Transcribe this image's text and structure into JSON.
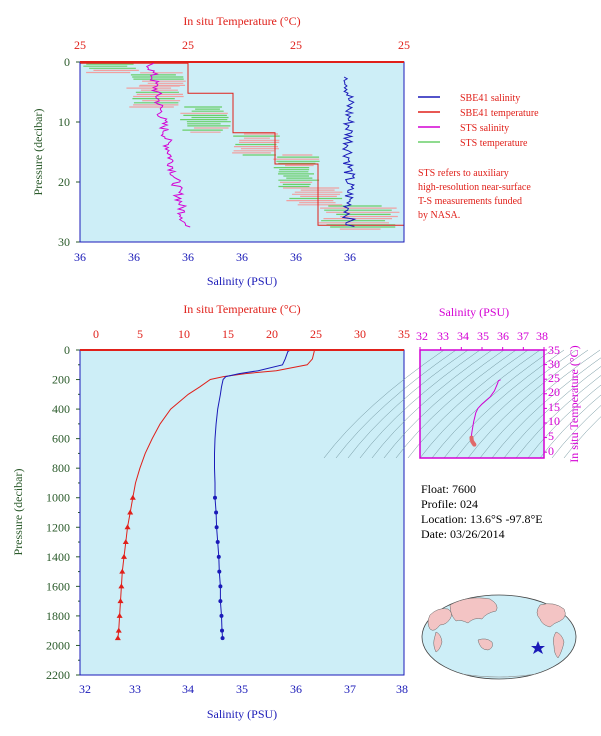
{
  "colors": {
    "temp": "#e0201a",
    "sal": "#1a1ab8",
    "sts_sal": "#d400d4",
    "sts_temp": "#6acf6a",
    "pressure": "#2a5a2a",
    "plot_bg": "#cdeef7",
    "info": "#000000"
  },
  "top_panel": {
    "top_axis_label": "In situ Temperature (°C)",
    "top_ticks": [
      "25",
      "25",
      "25",
      "25"
    ],
    "bottom_axis_label": "Salinity (PSU)",
    "bottom_ticks": [
      "36",
      "36",
      "36",
      "36",
      "36",
      "36"
    ],
    "left_axis_label": "Pressure (decibar)",
    "left_ticks": [
      "0",
      "10",
      "20",
      "30"
    ],
    "legend": [
      {
        "label": "SBE41 salinity",
        "color": "#1a1ab8"
      },
      {
        "label": "SBE41 temperature",
        "color": "#e0201a"
      },
      {
        "label": "STS salinity",
        "color": "#d400d4"
      },
      {
        "label": "STS temperature",
        "color": "#6acf6a"
      }
    ],
    "note": [
      "STS refers to auxiliary",
      "high-resolution near-surface",
      "T-S measurements funded",
      "by NASA."
    ]
  },
  "bottom_panel": {
    "top_axis_label": "In situ Temperature (°C)",
    "top_ticks": [
      "0",
      "5",
      "10",
      "15",
      "20",
      "25",
      "30",
      "35"
    ],
    "bottom_axis_label": "Salinity (PSU)",
    "bottom_ticks": [
      "32",
      "33",
      "34",
      "35",
      "36",
      "37",
      "38"
    ],
    "left_axis_label": "Pressure (decibar)",
    "left_ticks": [
      "0",
      "200",
      "400",
      "600",
      "800",
      "1000",
      "1200",
      "1400",
      "1600",
      "1800",
      "2000",
      "2200"
    ]
  },
  "ts_panel": {
    "top_axis_label": "Salinity (PSU)",
    "top_ticks": [
      "32",
      "33",
      "34",
      "35",
      "36",
      "37",
      "38"
    ],
    "right_axis_label": "In situ Temperature (°C)",
    "right_ticks": [
      "0",
      "5",
      "10",
      "15",
      "20",
      "25",
      "30",
      "35"
    ]
  },
  "info": {
    "float": "Float:  7600",
    "profile": "Profile:  024",
    "location": "Location:  13.6°S  -97.8°E",
    "date": "Date:  03/26/2014"
  },
  "chart_data": [
    {
      "type": "line",
      "name": "main-profile",
      "x_temperature_range": [
        0,
        35
      ],
      "x_salinity_range": [
        32,
        38
      ],
      "y_pressure_range": [
        2200,
        0
      ],
      "series": [
        {
          "name": "temperature",
          "pressure": [
            0,
            10,
            60,
            100,
            140,
            160,
            180,
            200,
            250,
            300,
            400,
            500,
            600,
            700,
            800,
            900,
            1000,
            1100,
            1200,
            1300,
            1400,
            1500,
            1600,
            1700,
            1800,
            1900,
            1950
          ],
          "values": [
            24.8,
            24.8,
            24.6,
            24.0,
            20.5,
            17.0,
            14.5,
            13.0,
            11.8,
            10.5,
            8.5,
            7.3,
            6.4,
            5.6,
            5.0,
            4.5,
            4.2,
            3.9,
            3.6,
            3.4,
            3.2,
            3.0,
            2.9,
            2.8,
            2.7,
            2.6,
            2.5
          ]
        },
        {
          "name": "salinity",
          "pressure": [
            0,
            10,
            60,
            100,
            140,
            160,
            180,
            200,
            250,
            300,
            400,
            500,
            600,
            700,
            800,
            900,
            1000,
            1100,
            1200,
            1300,
            1400,
            1500,
            1600,
            1700,
            1800,
            1900,
            1950
          ],
          "values": [
            35.9,
            35.85,
            35.8,
            35.75,
            35.3,
            34.95,
            34.7,
            34.65,
            34.62,
            34.6,
            34.55,
            34.52,
            34.5,
            34.49,
            34.49,
            34.5,
            34.5,
            34.52,
            34.53,
            34.55,
            34.57,
            34.58,
            34.6,
            34.6,
            34.62,
            34.63,
            34.64
          ]
        }
      ]
    },
    {
      "type": "scatter",
      "name": "ts-diagram",
      "x_salinity_range": [
        32,
        38
      ],
      "y_temperature_range": [
        -2,
        35
      ],
      "points": [
        [
          35.9,
          24.8
        ],
        [
          35.8,
          24.5
        ],
        [
          35.75,
          23.5
        ],
        [
          35.6,
          21
        ],
        [
          35.4,
          19
        ],
        [
          35.0,
          16.5
        ],
        [
          34.8,
          15
        ],
        [
          34.7,
          13.5
        ],
        [
          34.65,
          12
        ],
        [
          34.6,
          10.5
        ],
        [
          34.55,
          8.5
        ],
        [
          34.52,
          7.3
        ],
        [
          34.5,
          6.4
        ],
        [
          34.49,
          5.6
        ],
        [
          34.49,
          5.0
        ],
        [
          34.5,
          4.5
        ],
        [
          34.5,
          4.2
        ],
        [
          34.53,
          3.6
        ],
        [
          34.57,
          3.2
        ],
        [
          34.6,
          2.9
        ],
        [
          34.63,
          2.6
        ]
      ]
    }
  ]
}
